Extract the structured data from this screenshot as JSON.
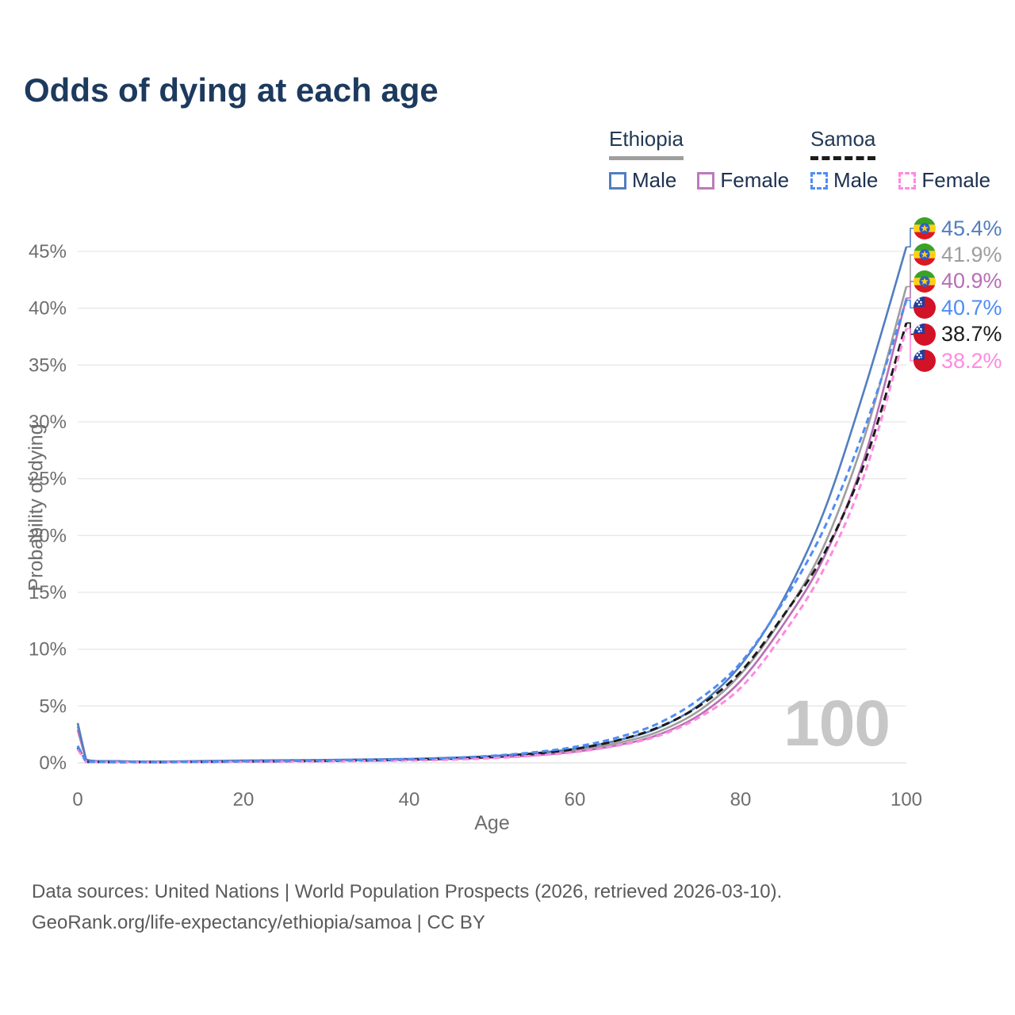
{
  "header": {
    "title": "Odds of dying at each age"
  },
  "legend": {
    "groups": [
      {
        "name": "Ethiopia",
        "line_style": "solid",
        "line_color": "#9e9e9e",
        "items": [
          {
            "label": "Male",
            "color": "#527ec0",
            "dashed": false
          },
          {
            "label": "Female",
            "color": "#bd7abc",
            "dashed": false
          }
        ]
      },
      {
        "name": "Samoa",
        "line_style": "dashed",
        "line_color": "#1b1b1b",
        "items": [
          {
            "label": "Male",
            "color": "#4f8df5",
            "dashed": true
          },
          {
            "label": "Female",
            "color": "#ff8ae0",
            "dashed": true
          }
        ]
      }
    ]
  },
  "axes": {
    "xlabel": "Age",
    "ylabel": "Probability of dying"
  },
  "watermark": "100",
  "footer": {
    "line1": "Data sources: United Nations | World Population Prospects (2026, retrieved 2026-03-10).",
    "line2": "GeoRank.org/life-expectancy/ethiopia/samoa | CC BY"
  },
  "colors": {
    "title": "#1d3a5e",
    "axis_text": "#6e6e6e",
    "gridline": "#e8e8e8",
    "watermark": "#c7c7c7",
    "footer_text": "#5a5a5a"
  },
  "chart_data": {
    "type": "line",
    "title": "Odds of dying at each age",
    "xlabel": "Age",
    "ylabel": "Probability of dying",
    "xlim": [
      0,
      100
    ],
    "ylim_pct": [
      0,
      47
    ],
    "grid": "horizontal",
    "legend_position": "top-right",
    "x_ticks": [
      0,
      20,
      40,
      60,
      80,
      100
    ],
    "y_ticks_pct": [
      0,
      5,
      10,
      15,
      20,
      25,
      30,
      35,
      40,
      45
    ],
    "ages": [
      0,
      1,
      5,
      10,
      15,
      20,
      25,
      30,
      35,
      40,
      45,
      50,
      55,
      60,
      65,
      70,
      75,
      80,
      85,
      90,
      95,
      100
    ],
    "series": [
      {
        "name": "Ethiopia Male",
        "country": "Ethiopia",
        "sex": "Male",
        "flag": "ethiopia-flag",
        "color": "#527ec0",
        "dash": null,
        "end_label": "45.4%",
        "end_value_pct": 45.4,
        "values_pct": [
          3.5,
          0.3,
          0.15,
          0.12,
          0.16,
          0.2,
          0.23,
          0.26,
          0.3,
          0.35,
          0.45,
          0.6,
          0.85,
          1.25,
          1.95,
          3.05,
          5.1,
          8.6,
          14.2,
          22.0,
          33.0,
          45.4
        ]
      },
      {
        "name": "Ethiopia Both sexes",
        "country": "Ethiopia",
        "sex": "Both",
        "flag": "ethiopia-flag",
        "color": "#9e9e9e",
        "dash": null,
        "end_label": "41.9%",
        "end_value_pct": 41.9,
        "values_pct": [
          3.2,
          0.28,
          0.14,
          0.11,
          0.14,
          0.17,
          0.2,
          0.23,
          0.26,
          0.31,
          0.39,
          0.52,
          0.74,
          1.1,
          1.72,
          2.72,
          4.6,
          7.8,
          12.7,
          19.0,
          28.8,
          41.9
        ]
      },
      {
        "name": "Ethiopia Female",
        "country": "Ethiopia",
        "sex": "Female",
        "flag": "ethiopia-flag",
        "color": "#b76fb5",
        "dash": null,
        "end_label": "40.9%",
        "end_value_pct": 40.9,
        "values_pct": [
          2.9,
          0.26,
          0.13,
          0.1,
          0.12,
          0.15,
          0.17,
          0.2,
          0.23,
          0.27,
          0.34,
          0.46,
          0.65,
          0.97,
          1.53,
          2.45,
          4.2,
          7.2,
          12.0,
          18.0,
          27.0,
          40.9
        ]
      },
      {
        "name": "Samoa Male",
        "country": "Samoa",
        "sex": "Male",
        "flag": "samoa-flag",
        "color": "#4f8df5",
        "dash": [
          8,
          5
        ],
        "end_label": "40.7%",
        "end_value_pct": 40.7,
        "values_pct": [
          1.5,
          0.1,
          0.06,
          0.05,
          0.09,
          0.13,
          0.16,
          0.2,
          0.25,
          0.32,
          0.43,
          0.62,
          0.92,
          1.4,
          2.2,
          3.45,
          5.6,
          8.8,
          14.0,
          20.5,
          29.5,
          40.7
        ]
      },
      {
        "name": "Samoa Both sexes",
        "country": "Samoa",
        "sex": "Both",
        "flag": "samoa-flag",
        "color": "#1b1b1b",
        "dash": [
          10,
          6
        ],
        "end_label": "38.7%",
        "end_value_pct": 38.7,
        "values_pct": [
          1.35,
          0.09,
          0.05,
          0.05,
          0.08,
          0.11,
          0.14,
          0.17,
          0.21,
          0.27,
          0.37,
          0.53,
          0.8,
          1.22,
          1.95,
          3.1,
          5.0,
          8.0,
          12.8,
          18.3,
          26.5,
          38.7
        ]
      },
      {
        "name": "Samoa Female",
        "country": "Samoa",
        "sex": "Female",
        "flag": "samoa-flag",
        "color": "#ff8ae0",
        "dash": [
          8,
          5
        ],
        "end_label": "38.2%",
        "end_value_pct": 38.2,
        "values_pct": [
          1.2,
          0.08,
          0.05,
          0.04,
          0.06,
          0.09,
          0.11,
          0.14,
          0.17,
          0.21,
          0.28,
          0.41,
          0.63,
          0.95,
          1.5,
          2.35,
          4.0,
          6.6,
          11.2,
          17.0,
          25.5,
          38.2
        ]
      }
    ],
    "annotations": {
      "age_counter": "100"
    }
  }
}
